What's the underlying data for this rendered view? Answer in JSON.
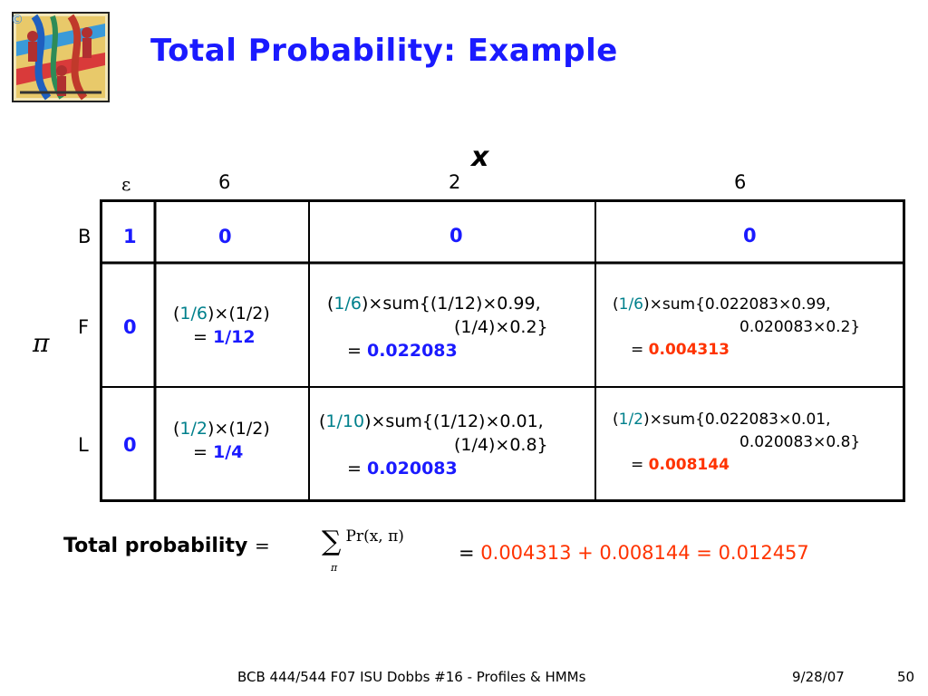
{
  "slide": {
    "title": "Total Probability: Example",
    "x_symbol": "x",
    "pi_symbol": "π",
    "epsilon": "ε",
    "columns": [
      "6",
      "2",
      "6"
    ],
    "rows": [
      {
        "label": "B",
        "init": "1",
        "c1": {
          "value": "0"
        },
        "c2": {
          "value": "0"
        },
        "c3": {
          "value": "0"
        }
      },
      {
        "label": "F",
        "init": "0",
        "c1": {
          "open": "(",
          "frac": "1/6",
          "rest": ")×(1/2)",
          "eq": "= ",
          "result": "1/12"
        },
        "c2": {
          "open": "(",
          "frac": "1/6",
          "line1": ")×sum{(1/12)×0.99,",
          "line2": "(1/4)×0.2}",
          "eq": "= ",
          "result": "0.022083"
        },
        "c3": {
          "open": "(",
          "frac": "1/6",
          "line1": ")×sum{0.022083×0.99,",
          "line2": "0.020083×0.2}",
          "eq": "= ",
          "result": "0.004313"
        }
      },
      {
        "label": "L",
        "init": "0",
        "c1": {
          "open": "(",
          "frac": "1/2",
          "rest": ")×(1/2)",
          "eq": "= ",
          "result": "1/4"
        },
        "c2": {
          "open": "(",
          "frac": "1/10",
          "line1": ")×sum{(1/12)×0.01,",
          "line2": "(1/4)×0.8}",
          "eq": "= ",
          "result": "0.020083"
        },
        "c3": {
          "open": "(",
          "frac": "1/2",
          "line1": ")×sum{0.022083×0.01,",
          "line2": "0.020083×0.8}",
          "eq": "= ",
          "result": "0.008144"
        }
      }
    ],
    "total": {
      "label": "Total probability",
      "eq": "=",
      "formula_sum": "∑",
      "formula_body": "Pr(x, π)",
      "formula_sub": "π",
      "result_eq": "= ",
      "result": "0.004313 + 0.008144 = 0.012457"
    },
    "footer": {
      "course": "BCB 444/544 F07 ISU Dobbs #16 - Profiles & HMMs",
      "date": "9/28/07",
      "page": "50"
    }
  },
  "colors": {
    "title": "#1a1aff",
    "value_blue": "#1a1aff",
    "fraction_teal": "#00808c",
    "result_red": "#ff3300"
  },
  "icons": [
    "clipart-people-strands-image"
  ]
}
